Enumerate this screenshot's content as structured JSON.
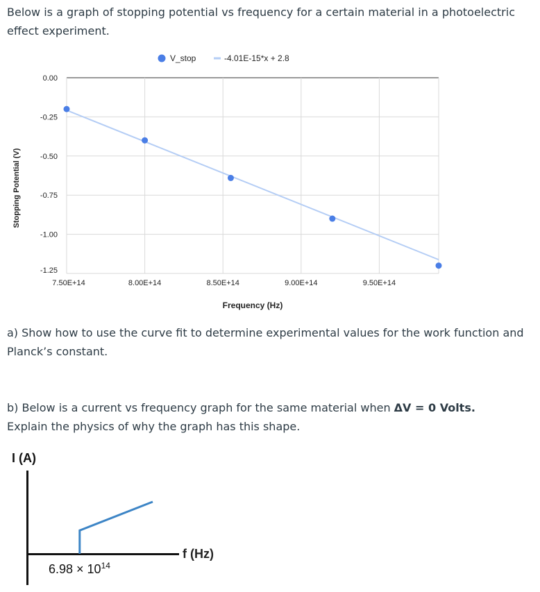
{
  "intro": {
    "text": "Below is a graph of stopping potential vs frequency for a certain material in a photoelectric effect experiment."
  },
  "part_a": {
    "text": "a) Show how to use the curve fit to determine experimental values for the work function and Planck’s constant."
  },
  "part_b": {
    "text_prefix": "b) Below is a current vs frequency graph for the same material when ",
    "bold_condition": "ΔV = 0 Volts.",
    "text_suffix": "Explain the physics of why the graph has this shape."
  },
  "chart_data": [
    {
      "type": "scatter",
      "xlabel": "Frequency (Hz)",
      "ylabel": "Stopping Potential (V)",
      "xlim": [
        750000000000000.0,
        988000000000000.0
      ],
      "ylim": [
        -1.25,
        0
      ],
      "x_ticks": [
        {
          "value": 750000000000000.0,
          "label": "7.50E+14"
        },
        {
          "value": 800000000000000.0,
          "label": "8.00E+14"
        },
        {
          "value": 850000000000000.0,
          "label": "8.50E+14"
        },
        {
          "value": 900000000000000.0,
          "label": "9.00E+14"
        },
        {
          "value": 950000000000000.0,
          "label": "9.50E+14"
        }
      ],
      "y_ticks": [
        {
          "value": 0,
          "label": "0.00"
        },
        {
          "value": -0.25,
          "label": "-0.25"
        },
        {
          "value": -0.5,
          "label": "-0.50"
        },
        {
          "value": -0.75,
          "label": "-0.75"
        },
        {
          "value": -1.0,
          "label": "-1.00"
        },
        {
          "value": -1.25,
          "label": "-1.25"
        }
      ],
      "series": [
        {
          "name": "V_stop",
          "color": "#4a7ee6",
          "x": [
            750000000000000.0,
            800000000000000.0,
            855000000000000.0,
            920000000000000.0,
            988000000000000.0
          ],
          "y": [
            -0.2,
            -0.4,
            -0.64,
            -0.9,
            -1.2
          ]
        }
      ],
      "trendline": {
        "name": "-4.01E-15*x + 2.8",
        "color": "#b4cdf5",
        "slope": -4.01e-15,
        "intercept": 2.8
      },
      "legend": "top",
      "grid": true
    },
    {
      "type": "line",
      "xlabel": "f (Hz)",
      "ylabel": "I (A)",
      "threshold_label": "6.98 × 10",
      "threshold_exponent": "14",
      "threshold": 698000000000000.0,
      "color": "#3d85c6",
      "x": [
        698000000000000.0,
        698000000000000.0,
        850000000000000.0
      ],
      "y": [
        0,
        0.45,
        1.0
      ]
    }
  ]
}
